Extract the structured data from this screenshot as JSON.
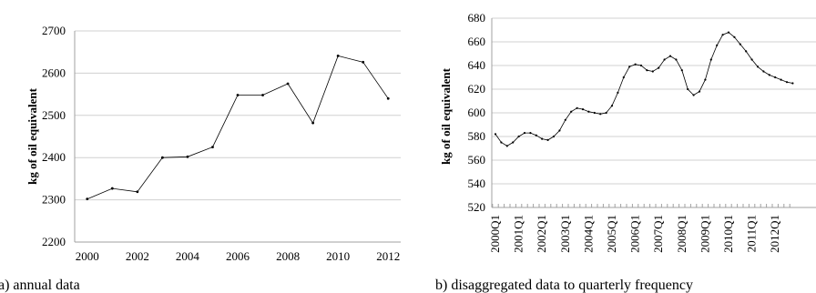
{
  "chart_data": [
    {
      "type": "line",
      "caption": "a) annual data",
      "ylabel": "kg of oil equivalent",
      "xlabel": "",
      "ylim": [
        2200,
        2700
      ],
      "yticks": [
        2200,
        2300,
        2400,
        2500,
        2600,
        2700
      ],
      "xlim": [
        1999.5,
        2012.5
      ],
      "xticks": [
        2000,
        2002,
        2004,
        2006,
        2008,
        2010,
        2012
      ],
      "grid": "horizontal",
      "series": [
        {
          "x": [
            2000,
            2001,
            2002,
            2003,
            2004,
            2005,
            2006,
            2007,
            2008,
            2009,
            2010,
            2011,
            2012
          ],
          "y": [
            2302,
            2327,
            2319,
            2400,
            2402,
            2425,
            2548,
            2548,
            2575,
            2482,
            2641,
            2626,
            2540
          ]
        }
      ]
    },
    {
      "type": "line",
      "caption": "b) disaggregated data to quarterly frequency",
      "ylabel": "kg of oil equivalent",
      "xlabel": "",
      "ylim": [
        520,
        680
      ],
      "yticks": [
        520,
        540,
        560,
        580,
        600,
        620,
        640,
        660,
        680
      ],
      "grid": "horizontal",
      "xtick_labels": [
        "2000Q1",
        "2001Q1",
        "2002Q1",
        "2003Q1",
        "2004Q1",
        "2005Q1",
        "2006Q1",
        "2007Q1",
        "2008Q1",
        "2009Q1",
        "2010Q1",
        "2011Q1",
        "2012Q1"
      ],
      "series": [
        {
          "x": [
            "2000Q1",
            "2000Q2",
            "2000Q3",
            "2000Q4",
            "2001Q1",
            "2001Q2",
            "2001Q3",
            "2001Q4",
            "2002Q1",
            "2002Q2",
            "2002Q3",
            "2002Q4",
            "2003Q1",
            "2003Q2",
            "2003Q3",
            "2003Q4",
            "2004Q1",
            "2004Q2",
            "2004Q3",
            "2004Q4",
            "2005Q1",
            "2005Q2",
            "2005Q3",
            "2005Q4",
            "2006Q1",
            "2006Q2",
            "2006Q3",
            "2006Q4",
            "2007Q1",
            "2007Q2",
            "2007Q3",
            "2007Q4",
            "2008Q1",
            "2008Q2",
            "2008Q3",
            "2008Q4",
            "2009Q1",
            "2009Q2",
            "2009Q3",
            "2009Q4",
            "2010Q1",
            "2010Q2",
            "2010Q3",
            "2010Q4",
            "2011Q1",
            "2011Q2",
            "2011Q3",
            "2011Q4",
            "2012Q1",
            "2012Q2",
            "2012Q3",
            "2012Q4"
          ],
          "y": [
            582,
            575,
            572,
            575,
            580,
            583,
            583,
            581,
            578,
            577,
            580,
            585,
            594,
            601,
            604,
            603,
            601,
            600,
            599,
            600,
            606,
            617,
            630,
            639,
            641,
            640,
            636,
            635,
            638,
            645,
            648,
            645,
            636,
            620,
            615,
            618,
            628,
            645,
            657,
            666,
            668,
            664,
            658,
            652,
            645,
            639,
            635,
            632,
            630,
            628,
            626,
            625
          ]
        }
      ]
    }
  ]
}
